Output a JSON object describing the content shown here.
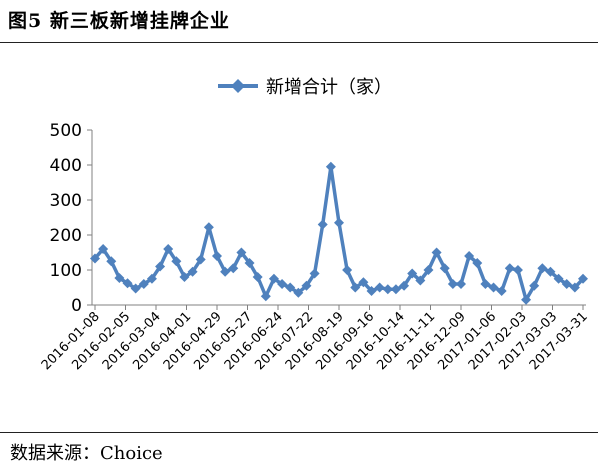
{
  "figure": {
    "title": "图5  新三板新增挂牌企业",
    "source": "数据来源：Choice"
  },
  "colors": {
    "series": "#4F81BD",
    "axis": "#808080"
  },
  "chart_data": {
    "type": "line",
    "legend_position": "top-center",
    "grid": false,
    "ylim": [
      0,
      500
    ],
    "y_ticks": [
      "0",
      "100",
      "200",
      "300",
      "400",
      "500"
    ],
    "x_tick_labels": [
      "2016-01-08",
      "2016-02-05",
      "2016-03-04",
      "2016-04-01",
      "2016-04-29",
      "2016-05-27",
      "2016-06-24",
      "2016-07-22",
      "2016-08-19",
      "2016-09-16",
      "2016-10-14",
      "2016-11-11",
      "2016-12-09",
      "2017-01-06",
      "2017-02-03",
      "2017-03-03",
      "2017-03-31"
    ],
    "series": [
      {
        "name": "新增合计（家）",
        "marker": "diamond",
        "values": [
          133,
          160,
          125,
          77,
          62,
          47,
          60,
          75,
          110,
          160,
          125,
          80,
          95,
          130,
          222,
          140,
          95,
          105,
          150,
          120,
          80,
          25,
          75,
          60,
          50,
          35,
          55,
          90,
          230,
          395,
          235,
          100,
          50,
          65,
          40,
          50,
          45,
          45,
          55,
          90,
          70,
          100,
          150,
          105,
          60,
          60,
          140,
          120,
          60,
          50,
          40,
          105,
          100,
          15,
          55,
          105,
          95,
          75,
          60,
          50,
          75
        ]
      }
    ]
  }
}
